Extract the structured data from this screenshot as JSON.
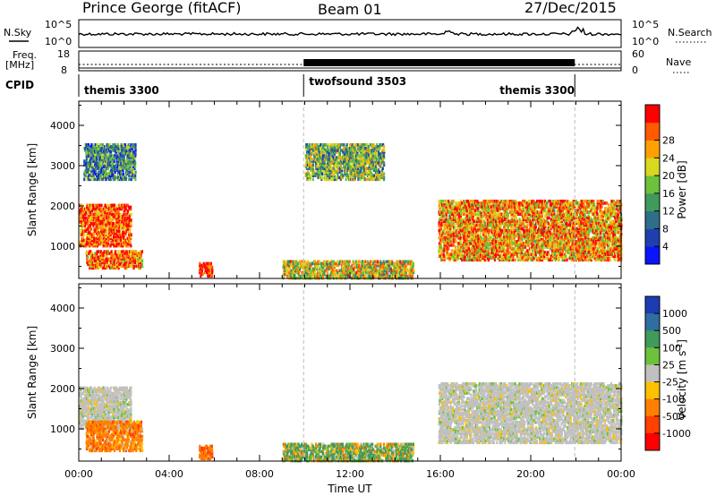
{
  "header": {
    "station": "Prince George (fitACF)",
    "beam": "Beam 01",
    "date": "27/Dec/2015"
  },
  "noise_panel": {
    "left_label": "N.Sky",
    "right_label": "N.Search",
    "left_ticks": [
      "10^5",
      "10^0"
    ],
    "right_ticks": [
      "10^5",
      "10^0"
    ]
  },
  "freq_panel": {
    "left_label_line1": "Freq.",
    "left_label_line2": "[MHz]",
    "right_label": "Nave",
    "left_ticks": [
      "18",
      "8"
    ],
    "right_ticks": [
      "60",
      "0"
    ],
    "cpid_label": "CPID"
  },
  "cpid_segments": [
    {
      "label": "themis 3300",
      "start_hour": 0,
      "end_hour": 9.95
    },
    {
      "label": "twofsound 3503",
      "start_hour": 9.95,
      "end_hour": 21.95
    },
    {
      "label": "themis 3300",
      "start_hour": 21.95,
      "end_hour": 24
    }
  ],
  "x_axis": {
    "label": "Time UT",
    "ticks": [
      "00:00",
      "04:00",
      "08:00",
      "12:00",
      "16:00",
      "20:00",
      "00:00"
    ]
  },
  "power_panel": {
    "ylabel": "Slant Range [km]",
    "yticks": [
      "1000",
      "2000",
      "3000",
      "4000"
    ],
    "cbar_label": "Power [dB]",
    "cbar_ticks": [
      "4",
      "8",
      "12",
      "16",
      "20",
      "24",
      "28"
    ],
    "cbar_colors": [
      "#0a14ff",
      "#1f3fb0",
      "#2f6e8a",
      "#3f9a5c",
      "#6cc23a",
      "#d8d820",
      "#ffa000",
      "#ff5a00",
      "#ff0000"
    ]
  },
  "velocity_panel": {
    "ylabel": "Slant Range [km]",
    "yticks": [
      "1000",
      "2000",
      "3000",
      "4000"
    ],
    "cbar_label": "Velocity [m s^-1]",
    "cbar_ticks": [
      "1000",
      "500",
      "100",
      "25",
      "-25",
      "-100",
      "-500",
      "-1000"
    ],
    "cbar_colors": [
      "#1c3cb4",
      "#2f6ea0",
      "#3f9a5c",
      "#6cc23a",
      "#c0c0c0",
      "#ffc000",
      "#ff8000",
      "#ff4000",
      "#ff0000"
    ]
  },
  "chart_data": [
    {
      "type": "heatmap",
      "title": "Prince George (fitACF) Beam 01 27/Dec/2015",
      "xlabel": "Time UT",
      "ylabel": "Slant Range [km]",
      "colorbar_label": "Power [dB]",
      "xlim": [
        0,
        24
      ],
      "ylim": [
        200,
        4600
      ],
      "clim": [
        0,
        30
      ],
      "scatter_regions": [
        {
          "t_start": 0.0,
          "t_end": 2.3,
          "r_start": 1050,
          "r_end": 2100,
          "power": 26
        },
        {
          "t_start": 0.3,
          "t_end": 2.8,
          "r_start": 500,
          "r_end": 950,
          "power": 24
        },
        {
          "t_start": 0.2,
          "t_end": 2.5,
          "r_start": 2700,
          "r_end": 3600,
          "power": 10
        },
        {
          "t_start": 5.3,
          "t_end": 5.9,
          "r_start": 300,
          "r_end": 650,
          "power": 28
        },
        {
          "t_start": 9.0,
          "t_end": 14.8,
          "r_start": 250,
          "r_end": 700,
          "power": 18
        },
        {
          "t_start": 10.0,
          "t_end": 13.5,
          "r_start": 2700,
          "r_end": 3600,
          "power": 14
        },
        {
          "t_start": 15.9,
          "t_end": 24.0,
          "r_start": 700,
          "r_end": 2200,
          "power": 22
        }
      ]
    },
    {
      "type": "heatmap",
      "title": "",
      "xlabel": "Time UT",
      "ylabel": "Slant Range [km]",
      "colorbar_label": "Velocity [m s^-1]",
      "xlim": [
        0,
        24
      ],
      "ylim": [
        200,
        4600
      ],
      "clim": [
        -1000,
        1000
      ],
      "scatter_regions": [
        {
          "t_start": 0.0,
          "t_end": 2.3,
          "r_start": 1050,
          "r_end": 2100,
          "velocity": 0
        },
        {
          "t_start": 0.3,
          "t_end": 2.8,
          "r_start": 500,
          "r_end": 1250,
          "velocity": -300
        },
        {
          "t_start": 5.3,
          "t_end": 5.9,
          "r_start": 300,
          "r_end": 650,
          "velocity": -400
        },
        {
          "t_start": 9.0,
          "t_end": 14.8,
          "r_start": 250,
          "r_end": 700,
          "velocity": 100
        },
        {
          "t_start": 15.9,
          "t_end": 24.0,
          "r_start": 700,
          "r_end": 2200,
          "velocity": 0
        }
      ]
    }
  ]
}
